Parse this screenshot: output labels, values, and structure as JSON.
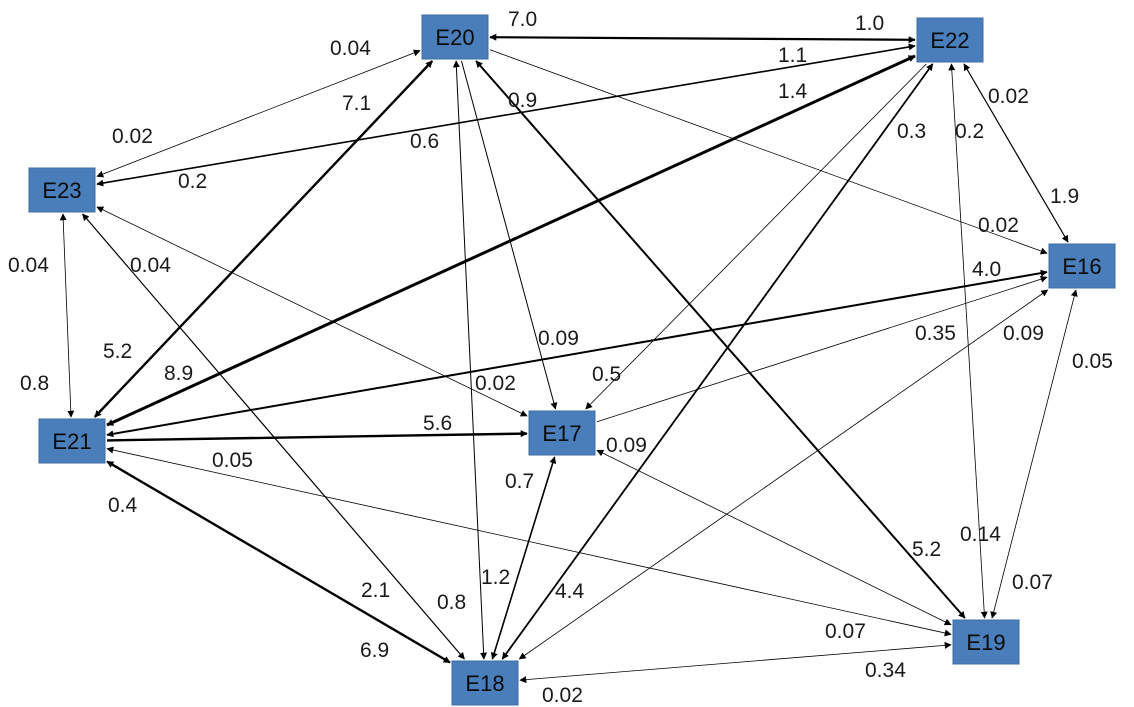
{
  "nodes": [
    {
      "id": "E20",
      "label": "E20"
    },
    {
      "id": "E22",
      "label": "E22"
    },
    {
      "id": "E23",
      "label": "E23"
    },
    {
      "id": "E16",
      "label": "E16"
    },
    {
      "id": "E21",
      "label": "E21"
    },
    {
      "id": "E17",
      "label": "E17"
    },
    {
      "id": "E19",
      "label": "E19"
    },
    {
      "id": "E18",
      "label": "E18"
    }
  ],
  "edge_labels": [
    "7.0",
    "1.0",
    "0.04",
    "1.1",
    "7.1",
    "1.4",
    "0.9",
    "0.02",
    "0.02",
    "0.6",
    "0.3",
    "0.2",
    "0.2",
    "1.9",
    "0.02",
    "0.04",
    "0.04",
    "4.0",
    "0.09",
    "0.35",
    "0.09",
    "5.2",
    "0.05",
    "0.8",
    "8.9",
    "0.02",
    "0.5",
    "5.6",
    "0.09",
    "0.05",
    "0.7",
    "0.4",
    "5.2",
    "0.14",
    "1.2",
    "0.07",
    "2.1",
    "0.8",
    "4.4",
    "0.07",
    "6.9",
    "0.34",
    "0.02"
  ]
}
